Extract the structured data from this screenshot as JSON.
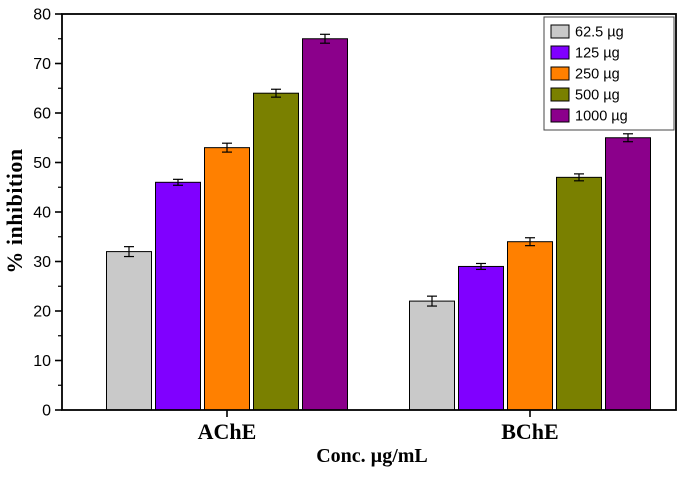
{
  "chart_data": {
    "type": "bar",
    "title": "",
    "xlabel": "Conc. µg/mL",
    "ylabel": "% inhibition",
    "ylim": [
      0,
      80
    ],
    "ytick_step": 10,
    "yticks": [
      0,
      10,
      20,
      30,
      40,
      50,
      60,
      70,
      80
    ],
    "grid": false,
    "legend_position": "top-right",
    "categories": [
      "AChE",
      "BChE"
    ],
    "series": [
      {
        "name": "62.5 µg",
        "color": "#c9c9c9",
        "values": [
          32,
          22
        ],
        "errors": [
          1.0,
          1.0
        ]
      },
      {
        "name": "125 µg",
        "color": "#8000ff",
        "values": [
          46,
          29
        ],
        "errors": [
          0.6,
          0.6
        ]
      },
      {
        "name": "250 µg",
        "color": "#ff8000",
        "values": [
          53,
          34
        ],
        "errors": [
          0.9,
          0.8
        ]
      },
      {
        "name": "500 µg",
        "color": "#7a8000",
        "values": [
          64,
          47
        ],
        "errors": [
          0.8,
          0.7
        ]
      },
      {
        "name": "1000 µg",
        "color": "#8b008b",
        "values": [
          75,
          55
        ],
        "errors": [
          0.9,
          0.8
        ]
      }
    ]
  }
}
